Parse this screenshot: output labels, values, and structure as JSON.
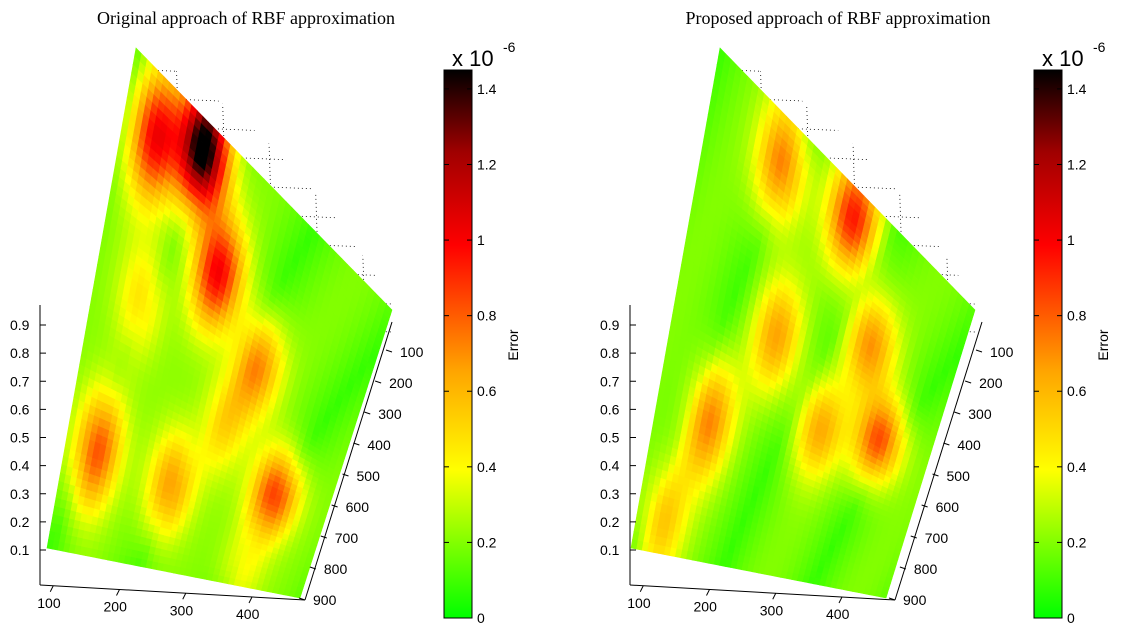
{
  "chart_data": [
    {
      "type": "heatmap",
      "title": "Original approach of RBF approximation",
      "z_axis_ticks": [
        "0.1",
        "0.2",
        "0.3",
        "0.4",
        "0.5",
        "0.6",
        "0.7",
        "0.8",
        "0.9"
      ],
      "y_axis_ticks": [
        "100",
        "200",
        "300",
        "400",
        "500",
        "600",
        "700",
        "800",
        "900"
      ],
      "x_axis_ticks": [
        "100",
        "200",
        "300",
        "400"
      ],
      "colorbar": {
        "label": "Error",
        "multiplier_base": "x 10",
        "multiplier_exp": "-6",
        "ticks": [
          "0",
          "0.2",
          "0.4",
          "0.6",
          "0.8",
          "1",
          "1.2",
          "1.4"
        ],
        "range": [
          0,
          1.45
        ]
      },
      "hotspots": [
        {
          "u": 0.29,
          "v": 0.06,
          "value": 1.4
        },
        {
          "u": 0.42,
          "v": 0.28,
          "value": 0.8
        },
        {
          "u": 0.12,
          "v": 0.12,
          "value": 0.8
        },
        {
          "u": 0.62,
          "v": 0.42,
          "value": 0.55
        },
        {
          "u": 0.18,
          "v": 0.45,
          "value": 0.35
        },
        {
          "u": 0.12,
          "v": 0.78,
          "value": 0.7
        },
        {
          "u": 0.42,
          "v": 0.8,
          "value": 0.55
        },
        {
          "u": 0.8,
          "v": 0.72,
          "value": 0.75
        },
        {
          "u": 0.55,
          "v": 0.6,
          "value": 0.35
        },
        {
          "u": 0.75,
          "v": 0.95,
          "value": 0.25
        }
      ]
    },
    {
      "type": "heatmap",
      "title": "Proposed approach of RBF approximation",
      "z_axis_ticks": [
        "0.1",
        "0.2",
        "0.3",
        "0.4",
        "0.5",
        "0.6",
        "0.7",
        "0.8",
        "0.9"
      ],
      "y_axis_ticks": [
        "100",
        "200",
        "300",
        "400",
        "500",
        "600",
        "700",
        "800",
        "900"
      ],
      "x_axis_ticks": [
        "100",
        "200",
        "300",
        "400"
      ],
      "colorbar": {
        "label": "Error",
        "multiplier_base": "x 10",
        "multiplier_exp": "-6",
        "ticks": [
          "0",
          "0.2",
          "0.4",
          "0.6",
          "0.8",
          "1",
          "1.2",
          "1.4"
        ],
        "range": [
          0,
          1.45
        ]
      },
      "hotspots": [
        {
          "u": 0.28,
          "v": 0.1,
          "value": 0.6
        },
        {
          "u": 0.55,
          "v": 0.07,
          "value": 0.75
        },
        {
          "u": 0.7,
          "v": 0.32,
          "value": 0.5
        },
        {
          "u": 0.38,
          "v": 0.45,
          "value": 0.45
        },
        {
          "u": 0.82,
          "v": 0.55,
          "value": 0.7
        },
        {
          "u": 0.6,
          "v": 0.6,
          "value": 0.45
        },
        {
          "u": 0.2,
          "v": 0.7,
          "value": 0.55
        },
        {
          "u": 0.1,
          "v": 0.93,
          "value": 0.4
        }
      ]
    }
  ]
}
